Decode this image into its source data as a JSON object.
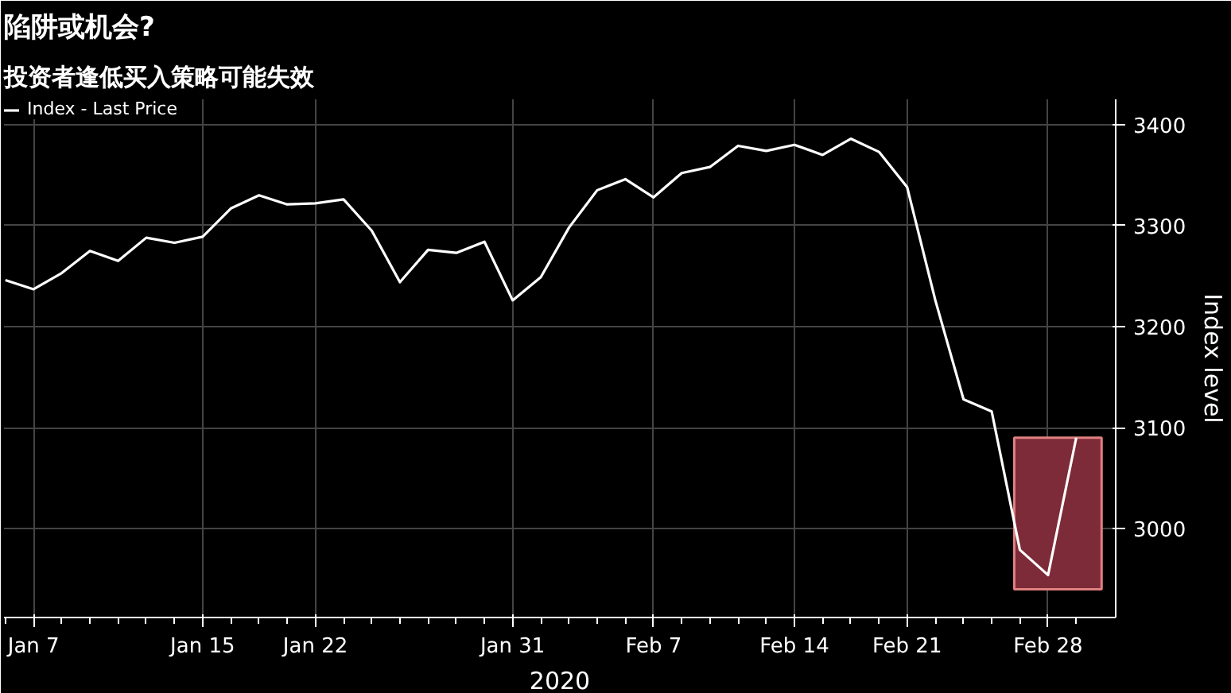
{
  "chart_data": {
    "type": "line",
    "title": "陷阱或机会?",
    "subtitle": "投资者逢低买入策略可能失效",
    "ylabel": "Index level",
    "xlabel": "2020",
    "categories": [
      null,
      "Jan 7",
      null,
      null,
      null,
      null,
      null,
      "Jan 15",
      null,
      null,
      null,
      "Jan 22",
      null,
      null,
      null,
      null,
      null,
      null,
      "Jan 31",
      null,
      null,
      null,
      null,
      "Feb 7",
      null,
      null,
      null,
      null,
      "Feb 14",
      null,
      null,
      null,
      "Feb 21",
      null,
      null,
      null,
      null,
      "Feb 28",
      null
    ],
    "series": [
      {
        "name": "Index - Last Price",
        "color": "#ffffff",
        "values": [
          3246,
          3237,
          3253,
          3275,
          3265,
          3288,
          3283,
          3289,
          3317,
          3330,
          3321,
          3322,
          3326,
          3295,
          3244,
          3276,
          3273,
          3284,
          3226,
          3249,
          3298,
          3335,
          3346,
          3328,
          3352,
          3358,
          3379,
          3374,
          3380,
          3370,
          3386,
          3373,
          3338,
          3226,
          3128,
          3116,
          2979,
          2954,
          3090
        ]
      }
    ],
    "ylim": [
      2912,
      3425
    ],
    "yticks": [
      3000,
      3100,
      3200,
      3300,
      3400
    ],
    "bands": [
      {
        "axis": "y",
        "from": 2940,
        "to": 3090,
        "color": "#7d2b38"
      }
    ],
    "grid": true,
    "legend": "top left",
    "marker": "none",
    "line_style": "solid"
  }
}
